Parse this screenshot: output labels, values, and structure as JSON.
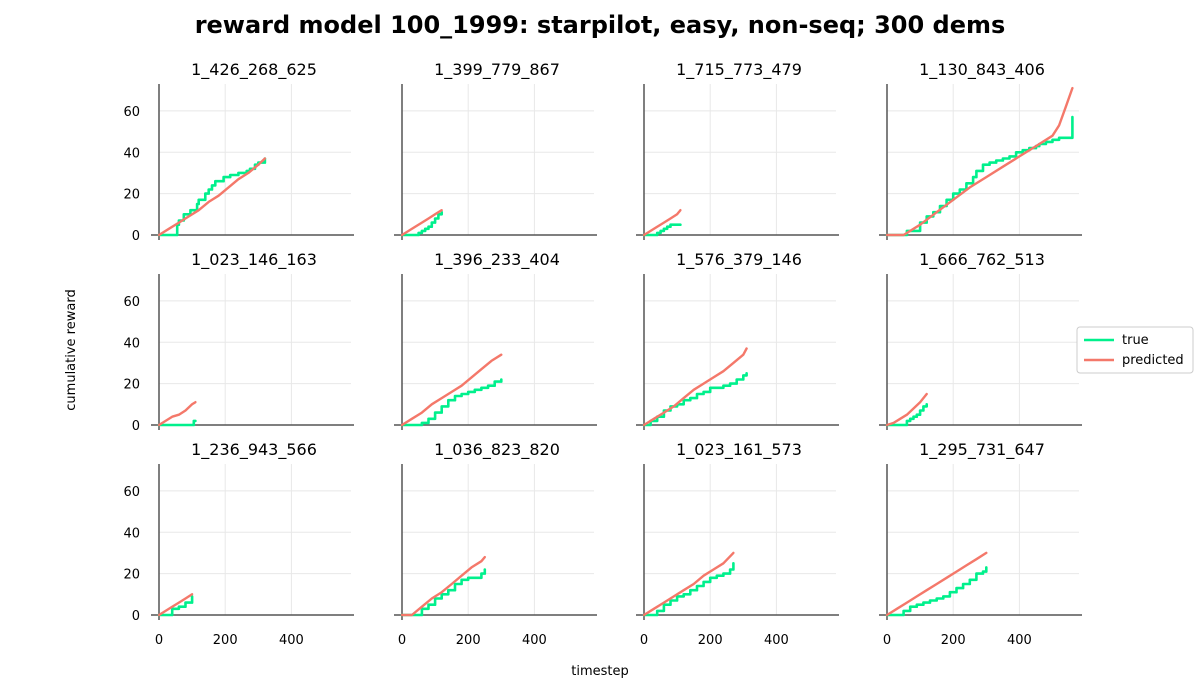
{
  "figure": {
    "title": "reward model 100_1999: starpilot, easy, non-seq; 300 dems",
    "xlabel": "timestep",
    "ylabel": "cumulative reward"
  },
  "colors": {
    "true": "#00f08c",
    "predicted": "#f4786a",
    "grid": "#e8e8e8",
    "axis": "#555555"
  },
  "chart_data": {
    "type": "line",
    "xlim": [
      0,
      580
    ],
    "ylim": [
      0,
      73
    ],
    "xticks": [
      0,
      200,
      400
    ],
    "yticks": [
      0,
      20,
      40,
      60
    ],
    "grid": true,
    "legend": {
      "placement": "right",
      "entries": [
        "true",
        "predicted"
      ]
    },
    "panels": [
      {
        "title": "1_426_268_625",
        "series": [
          {
            "name": "true",
            "x": [
              0,
              40,
              55,
              60,
              75,
              95,
              100,
              115,
              120,
              140,
              150,
              160,
              170,
              185,
              195,
              205,
              215,
              225,
              240,
              250,
              265,
              275,
              290,
              300,
              320
            ],
            "y": [
              0,
              0,
              5,
              7,
              10,
              12,
              12,
              15,
              17,
              20,
              22,
              24,
              26,
              26,
              28,
              28,
              29,
              29,
              30,
              30,
              31,
              32,
              34,
              35,
              37
            ]
          },
          {
            "name": "predicted",
            "x": [
              0,
              30,
              60,
              90,
              120,
              150,
              180,
              210,
              240,
              270,
              300,
              320
            ],
            "y": [
              0,
              3,
              6,
              9,
              12,
              16,
              19,
              23,
              27,
              30,
              34,
              37
            ]
          }
        ]
      },
      {
        "title": "1_399_779_867",
        "series": [
          {
            "name": "true",
            "x": [
              0,
              30,
              50,
              60,
              70,
              80,
              90,
              100,
              110,
              120
            ],
            "y": [
              0,
              0,
              1,
              2,
              3,
              4,
              6,
              8,
              10,
              11
            ]
          },
          {
            "name": "predicted",
            "x": [
              0,
              20,
              40,
              60,
              80,
              100,
              120
            ],
            "y": [
              0,
              2,
              4,
              6,
              8,
              10,
              12
            ]
          }
        ]
      },
      {
        "title": "1_715_773_479",
        "series": [
          {
            "name": "true",
            "x": [
              0,
              25,
              40,
              50,
              60,
              70,
              80,
              110
            ],
            "y": [
              0,
              0,
              1,
              2,
              3,
              4,
              5,
              5
            ]
          },
          {
            "name": "predicted",
            "x": [
              0,
              20,
              40,
              60,
              80,
              100,
              110
            ],
            "y": [
              0,
              2,
              4,
              6,
              8,
              10,
              12
            ]
          }
        ]
      },
      {
        "title": "1_130_843_406",
        "series": [
          {
            "name": "true",
            "x": [
              0,
              40,
              60,
              100,
              120,
              140,
              160,
              180,
              200,
              220,
              240,
              260,
              270,
              290,
              310,
              330,
              350,
              370,
              390,
              410,
              430,
              450,
              460,
              480,
              500,
              520,
              540,
              555,
              560
            ],
            "y": [
              0,
              0,
              2,
              6,
              9,
              11,
              14,
              17,
              20,
              22,
              25,
              28,
              31,
              34,
              35,
              36,
              37,
              38,
              40,
              41,
              42,
              43,
              44,
              45,
              46,
              47,
              47,
              47,
              57
            ]
          },
          {
            "name": "predicted",
            "x": [
              0,
              50,
              100,
              150,
              200,
              250,
              300,
              350,
              400,
              450,
              500,
              520,
              540,
              560
            ],
            "y": [
              0,
              0,
              5,
              11,
              17,
              23,
              28,
              33,
              38,
              43,
              48,
              53,
              62,
              71
            ]
          }
        ]
      },
      {
        "title": "1_023_146_163",
        "series": [
          {
            "name": "true",
            "x": [
              0,
              30,
              60,
              100,
              105,
              110
            ],
            "y": [
              0,
              0,
              0,
              0,
              2,
              2
            ]
          },
          {
            "name": "predicted",
            "x": [
              0,
              20,
              40,
              60,
              80,
              100,
              110
            ],
            "y": [
              0,
              2,
              4,
              5,
              7,
              10,
              11
            ]
          }
        ]
      },
      {
        "title": "1_396_233_404",
        "series": [
          {
            "name": "true",
            "x": [
              0,
              50,
              60,
              80,
              100,
              120,
              140,
              160,
              180,
              200,
              220,
              240,
              260,
              280,
              300
            ],
            "y": [
              0,
              0,
              1,
              3,
              6,
              9,
              12,
              14,
              15,
              16,
              17,
              18,
              19,
              21,
              22
            ]
          },
          {
            "name": "predicted",
            "x": [
              0,
              30,
              60,
              90,
              120,
              150,
              180,
              210,
              240,
              270,
              300
            ],
            "y": [
              0,
              3,
              6,
              10,
              13,
              16,
              19,
              23,
              27,
              31,
              34
            ]
          }
        ]
      },
      {
        "title": "1_576_379_146",
        "series": [
          {
            "name": "true",
            "x": [
              0,
              20,
              40,
              60,
              80,
              100,
              120,
              140,
              160,
              180,
              200,
              220,
              240,
              260,
              280,
              300,
              310
            ],
            "y": [
              0,
              2,
              4,
              7,
              9,
              10,
              12,
              13,
              15,
              16,
              18,
              18,
              19,
              20,
              22,
              24,
              25
            ]
          },
          {
            "name": "predicted",
            "x": [
              0,
              30,
              60,
              90,
              120,
              150,
              180,
              210,
              240,
              270,
              300,
              310
            ],
            "y": [
              0,
              3,
              6,
              9,
              13,
              17,
              20,
              23,
              26,
              30,
              34,
              37
            ]
          }
        ]
      },
      {
        "title": "1_666_762_513",
        "series": [
          {
            "name": "true",
            "x": [
              0,
              40,
              60,
              70,
              80,
              90,
              100,
              110,
              120
            ],
            "y": [
              0,
              0,
              2,
              3,
              4,
              5,
              7,
              9,
              10
            ]
          },
          {
            "name": "predicted",
            "x": [
              0,
              20,
              40,
              60,
              80,
              100,
              120
            ],
            "y": [
              0,
              1,
              3,
              5,
              8,
              11,
              15
            ]
          }
        ]
      },
      {
        "title": "1_236_943_566",
        "series": [
          {
            "name": "true",
            "x": [
              0,
              20,
              40,
              60,
              80,
              100
            ],
            "y": [
              0,
              0,
              3,
              4,
              6,
              9
            ]
          },
          {
            "name": "predicted",
            "x": [
              0,
              20,
              40,
              60,
              80,
              100
            ],
            "y": [
              0,
              2,
              4,
              6,
              8,
              10
            ]
          }
        ]
      },
      {
        "title": "1_036_823_820",
        "series": [
          {
            "name": "true",
            "x": [
              0,
              40,
              60,
              80,
              100,
              120,
              140,
              160,
              180,
              200,
              220,
              240,
              250
            ],
            "y": [
              0,
              0,
              3,
              5,
              8,
              10,
              12,
              15,
              17,
              18,
              18,
              20,
              22
            ]
          },
          {
            "name": "predicted",
            "x": [
              0,
              30,
              60,
              90,
              120,
              150,
              180,
              210,
              240,
              250
            ],
            "y": [
              0,
              0,
              4,
              8,
              11,
              15,
              19,
              23,
              26,
              28
            ]
          }
        ]
      },
      {
        "title": "1_023_161_573",
        "series": [
          {
            "name": "true",
            "x": [
              0,
              20,
              40,
              60,
              80,
              100,
              120,
              140,
              160,
              180,
              200,
              220,
              240,
              260,
              270
            ],
            "y": [
              0,
              0,
              2,
              5,
              7,
              9,
              10,
              12,
              14,
              16,
              18,
              19,
              20,
              22,
              25
            ]
          },
          {
            "name": "predicted",
            "x": [
              0,
              30,
              60,
              90,
              120,
              150,
              180,
              210,
              240,
              270
            ],
            "y": [
              0,
              3,
              6,
              9,
              12,
              15,
              19,
              22,
              25,
              30
            ]
          }
        ]
      },
      {
        "title": "1_295_731_647",
        "series": [
          {
            "name": "true",
            "x": [
              0,
              30,
              50,
              70,
              90,
              110,
              130,
              150,
              170,
              190,
              210,
              230,
              250,
              270,
              290,
              300
            ],
            "y": [
              0,
              0,
              2,
              4,
              5,
              6,
              7,
              8,
              9,
              11,
              13,
              15,
              17,
              20,
              21,
              23
            ]
          },
          {
            "name": "predicted",
            "x": [
              0,
              30,
              60,
              90,
              120,
              150,
              180,
              210,
              240,
              270,
              300
            ],
            "y": [
              0,
              3,
              6,
              9,
              12,
              15,
              18,
              21,
              24,
              27,
              30
            ]
          }
        ]
      }
    ]
  }
}
